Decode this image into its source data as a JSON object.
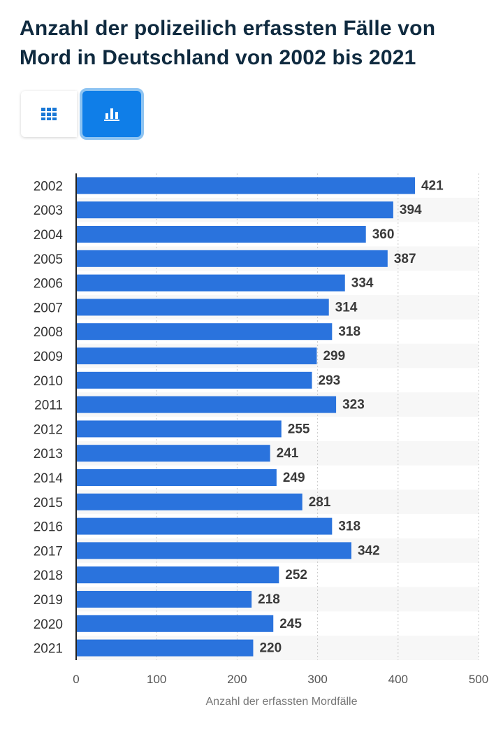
{
  "header": {
    "title": "Anzahl der polizeilich erfassten Fälle von Mord in Deutschland von 2002 bis 2021"
  },
  "view_toggle": {
    "table_icon": "grid-table-icon",
    "chart_icon": "bar-chart-icon",
    "active": "chart"
  },
  "colors": {
    "bar": "#2a73dd",
    "stripe": "#f7f7f7",
    "title": "#0f2a3f",
    "active_toggle": "#0f7ee8"
  },
  "chart_data": {
    "type": "bar",
    "orientation": "horizontal",
    "categories": [
      "2002",
      "2003",
      "2004",
      "2005",
      "2006",
      "2007",
      "2008",
      "2009",
      "2010",
      "2011",
      "2012",
      "2013",
      "2014",
      "2015",
      "2016",
      "2017",
      "2018",
      "2019",
      "2020",
      "2021"
    ],
    "values": [
      421,
      394,
      360,
      387,
      334,
      314,
      318,
      299,
      293,
      323,
      255,
      241,
      249,
      281,
      318,
      342,
      252,
      218,
      245,
      220
    ],
    "xlabel": "Anzahl der erfassten Mordfälle",
    "xlim": [
      0,
      500
    ],
    "xticks": [
      0,
      100,
      200,
      300,
      400,
      500
    ],
    "grid": true,
    "data_labels": true
  }
}
